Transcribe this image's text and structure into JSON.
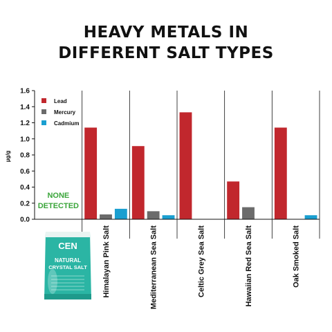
{
  "title_line_1": "HEAVY METALS IN",
  "title_line_2": "DIFFERENT SALT TYPES",
  "chart_data": {
    "type": "bar",
    "title": "HEAVY METALS IN DIFFERENT SALT TYPES",
    "ylabel": "µg/g",
    "xlabel": "",
    "ylim": [
      0,
      1.6
    ],
    "yticks": [
      "0.0",
      "0.2",
      "0.4",
      "0.6",
      "0.8",
      "1.0",
      "1.2",
      "1.4",
      "1.6"
    ],
    "grid": "vertical lines between categories",
    "legend_position": "top-left",
    "categories": [
      "",
      "Himalayan Pink Salt",
      "Mediterranean Sea Salt",
      "Celtic Grey Sea Salt",
      "Hawaiian Red Sea Salt",
      "Oak Smoked Salt"
    ],
    "series": [
      {
        "name": "Lead",
        "color": "#c1272d",
        "values": [
          null,
          1.14,
          0.91,
          1.33,
          0.47,
          1.14
        ]
      },
      {
        "name": "Mercury",
        "color": "#6b6b6b",
        "values": [
          null,
          0.06,
          0.1,
          null,
          0.15,
          null
        ]
      },
      {
        "name": "Cadmium",
        "color": "#1a9fd0",
        "values": [
          null,
          0.13,
          0.05,
          null,
          null,
          0.05
        ]
      }
    ],
    "annotations": [
      {
        "category_index": 0,
        "text_lines": [
          "NONE",
          "DETECTED"
        ],
        "color": "#3aa53a"
      }
    ],
    "first_category_image": {
      "icon": "salt-bag-icon",
      "brand": "CEN",
      "product_line_1": "NATURAL",
      "product_line_2": "CRYSTAL SALT",
      "color": "#2bb5a4"
    }
  }
}
